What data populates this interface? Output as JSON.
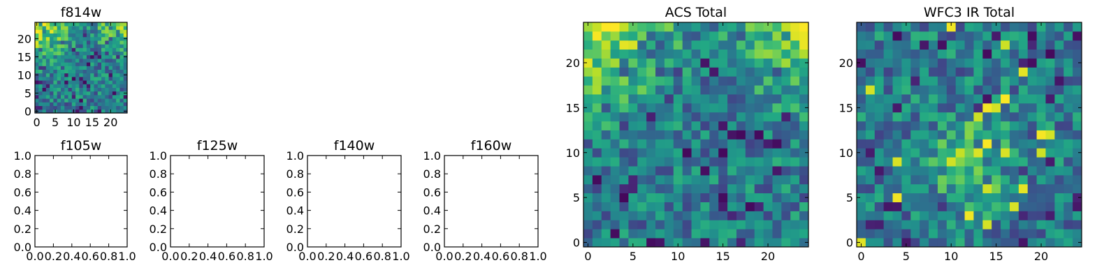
{
  "chart_data": [
    {
      "type": "heatmap",
      "title": "f814w",
      "x_ticks": [
        "0",
        "5",
        "10",
        "15",
        "20"
      ],
      "y_ticks": [
        "0",
        "5",
        "10",
        "15",
        "20"
      ],
      "xlim": [
        -0.5,
        24.5
      ],
      "ylim": [
        -0.5,
        24.5
      ],
      "grid_size": 25,
      "colormap": "viridis",
      "seed": 11,
      "pattern": "corners"
    },
    {
      "type": "empty",
      "title": "f105w",
      "x_ticks": [
        "0.0",
        "0.2",
        "0.4",
        "0.6",
        "0.8",
        "1.0"
      ],
      "y_ticks": [
        "0.0",
        "0.2",
        "0.4",
        "0.6",
        "0.8",
        "1.0"
      ],
      "xlim": [
        0,
        1
      ],
      "ylim": [
        0,
        1
      ]
    },
    {
      "type": "empty",
      "title": "f125w",
      "x_ticks": [
        "0.0",
        "0.2",
        "0.4",
        "0.6",
        "0.8",
        "1.0"
      ],
      "y_ticks": [
        "0.0",
        "0.2",
        "0.4",
        "0.6",
        "0.8",
        "1.0"
      ],
      "xlim": [
        0,
        1
      ],
      "ylim": [
        0,
        1
      ]
    },
    {
      "type": "empty",
      "title": "f140w",
      "x_ticks": [
        "0.0",
        "0.2",
        "0.4",
        "0.6",
        "0.8",
        "1.0"
      ],
      "y_ticks": [
        "0.0",
        "0.2",
        "0.4",
        "0.6",
        "0.8",
        "1.0"
      ],
      "xlim": [
        0,
        1
      ],
      "ylim": [
        0,
        1
      ]
    },
    {
      "type": "empty",
      "title": "f160w",
      "x_ticks": [
        "0.0",
        "0.2",
        "0.4",
        "0.6",
        "0.8",
        "1.0"
      ],
      "y_ticks": [
        "0.0",
        "0.2",
        "0.4",
        "0.6",
        "0.8",
        "1.0"
      ],
      "xlim": [
        0,
        1
      ],
      "ylim": [
        0,
        1
      ]
    },
    {
      "type": "heatmap",
      "title": "ACS Total",
      "x_ticks": [
        "0",
        "5",
        "10",
        "15",
        "20"
      ],
      "y_ticks": [
        "0",
        "5",
        "10",
        "15",
        "20"
      ],
      "xlim": [
        -0.5,
        24.5
      ],
      "ylim": [
        -0.5,
        24.5
      ],
      "grid_size": 25,
      "colormap": "viridis",
      "seed": 29,
      "pattern": "corners"
    },
    {
      "type": "heatmap",
      "title": "WFC3 IR Total",
      "x_ticks": [
        "0",
        "5",
        "10",
        "15",
        "20"
      ],
      "y_ticks": [
        "0",
        "5",
        "10",
        "15",
        "20"
      ],
      "xlim": [
        -0.5,
        24.5
      ],
      "ylim": [
        -0.5,
        24.5
      ],
      "grid_size": 25,
      "colormap": "viridis",
      "seed": 47,
      "pattern": "center"
    }
  ]
}
